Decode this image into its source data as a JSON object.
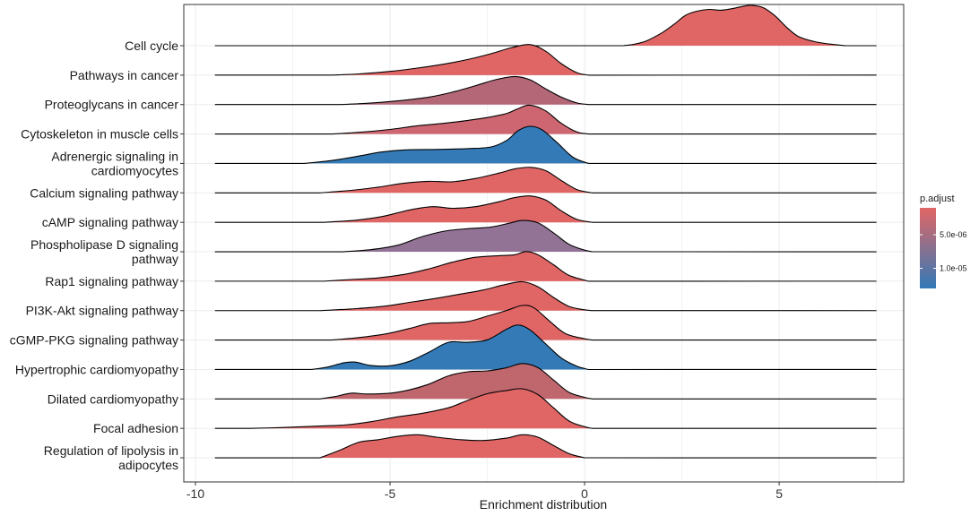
{
  "chart_data": {
    "type": "ridgeline",
    "xlabel": "Enrichment distribution",
    "xlim": [
      -10.3,
      8.2
    ],
    "x_ticks": [
      -10,
      -5,
      0,
      5
    ],
    "x_tick_labels": [
      "-10",
      "-5",
      "0",
      "5"
    ],
    "grid": true,
    "legend": {
      "title": "p.adjust",
      "position": "right",
      "tick_labels": [
        "5.0e-06",
        "1.0e-05"
      ],
      "tick_values": [
        5e-06,
        1e-05
      ],
      "range": [
        1e-06,
        1.3e-05
      ],
      "colors": [
        "#e06665",
        "#337ab7"
      ]
    },
    "series": [
      {
        "name": "Cell cycle",
        "label_lines": [
          "Cell cycle"
        ],
        "color": "#e06665",
        "range": [
          -9.5,
          7.5
        ],
        "density": [
          [
            1.0,
            0
          ],
          [
            1.3,
            0.04
          ],
          [
            1.6,
            0.12
          ],
          [
            2.0,
            0.32
          ],
          [
            2.3,
            0.52
          ],
          [
            2.6,
            0.74
          ],
          [
            2.9,
            0.84
          ],
          [
            3.2,
            0.88
          ],
          [
            3.5,
            0.86
          ],
          [
            3.8,
            0.9
          ],
          [
            4.1,
            0.96
          ],
          [
            4.3,
            0.98
          ],
          [
            4.6,
            0.92
          ],
          [
            4.9,
            0.72
          ],
          [
            5.2,
            0.44
          ],
          [
            5.5,
            0.22
          ],
          [
            5.9,
            0.1
          ],
          [
            6.3,
            0.04
          ],
          [
            6.7,
            0
          ]
        ]
      },
      {
        "name": "Pathways in cancer",
        "label_lines": [
          "Pathways in cancer"
        ],
        "color": "#e06665",
        "range": [
          -9.5,
          7.5
        ],
        "density": [
          [
            -6.5,
            0
          ],
          [
            -5.8,
            0.03
          ],
          [
            -5.0,
            0.09
          ],
          [
            -4.3,
            0.17
          ],
          [
            -3.6,
            0.27
          ],
          [
            -3.0,
            0.38
          ],
          [
            -2.4,
            0.52
          ],
          [
            -1.9,
            0.66
          ],
          [
            -1.4,
            0.74
          ],
          [
            -1.0,
            0.58
          ],
          [
            -0.6,
            0.28
          ],
          [
            -0.2,
            0.06
          ],
          [
            0.1,
            0
          ]
        ]
      },
      {
        "name": "Proteoglycans in cancer",
        "label_lines": [
          "Proteoglycans in cancer"
        ],
        "color": "#b46777",
        "range": [
          -9.5,
          7.5
        ],
        "density": [
          [
            -6.3,
            0
          ],
          [
            -5.6,
            0.03
          ],
          [
            -4.8,
            0.09
          ],
          [
            -4.0,
            0.18
          ],
          [
            -3.4,
            0.3
          ],
          [
            -2.8,
            0.46
          ],
          [
            -2.3,
            0.6
          ],
          [
            -1.8,
            0.68
          ],
          [
            -1.4,
            0.6
          ],
          [
            -1.0,
            0.38
          ],
          [
            -0.6,
            0.18
          ],
          [
            -0.2,
            0.04
          ],
          [
            0.1,
            0
          ]
        ]
      },
      {
        "name": "Cytoskeleton in muscle cells",
        "label_lines": [
          "Cytoskeleton in muscle cells"
        ],
        "color": "#cd6670",
        "range": [
          -9.5,
          7.5
        ],
        "density": [
          [
            -6.5,
            0
          ],
          [
            -5.8,
            0.04
          ],
          [
            -5.0,
            0.11
          ],
          [
            -4.3,
            0.2
          ],
          [
            -3.6,
            0.26
          ],
          [
            -3.0,
            0.33
          ],
          [
            -2.5,
            0.4
          ],
          [
            -2.0,
            0.5
          ],
          [
            -1.7,
            0.62
          ],
          [
            -1.4,
            0.7
          ],
          [
            -1.0,
            0.56
          ],
          [
            -0.6,
            0.26
          ],
          [
            -0.2,
            0.05
          ],
          [
            0.1,
            0
          ]
        ]
      },
      {
        "name": "Adrenergic signaling in cardiomyocytes",
        "label_lines": [
          "Adrenergic signaling in",
          "cardiomyocytes"
        ],
        "color": "#337ab7",
        "range": [
          -9.5,
          7.5
        ],
        "density": [
          [
            -7.2,
            0
          ],
          [
            -6.5,
            0.07
          ],
          [
            -5.8,
            0.18
          ],
          [
            -5.2,
            0.28
          ],
          [
            -4.6,
            0.33
          ],
          [
            -3.8,
            0.34
          ],
          [
            -3.0,
            0.36
          ],
          [
            -2.4,
            0.4
          ],
          [
            -2.0,
            0.56
          ],
          [
            -1.7,
            0.8
          ],
          [
            -1.4,
            0.9
          ],
          [
            -1.1,
            0.82
          ],
          [
            -0.7,
            0.5
          ],
          [
            -0.3,
            0.15
          ],
          [
            0.1,
            0
          ]
        ]
      },
      {
        "name": "Calcium signaling pathway",
        "label_lines": [
          "Calcium signaling pathway"
        ],
        "color": "#e06665",
        "range": [
          -9.5,
          7.5
        ],
        "density": [
          [
            -6.8,
            0
          ],
          [
            -6.0,
            0.06
          ],
          [
            -5.3,
            0.14
          ],
          [
            -4.6,
            0.24
          ],
          [
            -4.0,
            0.28
          ],
          [
            -3.4,
            0.27
          ],
          [
            -2.8,
            0.35
          ],
          [
            -2.2,
            0.48
          ],
          [
            -1.8,
            0.58
          ],
          [
            -1.4,
            0.62
          ],
          [
            -1.0,
            0.54
          ],
          [
            -0.6,
            0.3
          ],
          [
            -0.2,
            0.08
          ],
          [
            0.2,
            0
          ]
        ]
      },
      {
        "name": "cAMP signaling pathway",
        "label_lines": [
          "cAMP signaling pathway"
        ],
        "color": "#e06665",
        "range": [
          -9.5,
          7.5
        ],
        "density": [
          [
            -6.7,
            0
          ],
          [
            -5.9,
            0.05
          ],
          [
            -5.2,
            0.14
          ],
          [
            -4.5,
            0.3
          ],
          [
            -3.9,
            0.38
          ],
          [
            -3.4,
            0.34
          ],
          [
            -2.8,
            0.38
          ],
          [
            -2.2,
            0.5
          ],
          [
            -1.8,
            0.6
          ],
          [
            -1.4,
            0.64
          ],
          [
            -1.0,
            0.54
          ],
          [
            -0.6,
            0.28
          ],
          [
            -0.2,
            0.07
          ],
          [
            0.2,
            0
          ]
        ]
      },
      {
        "name": "Phospholipase D signaling pathway",
        "label_lines": [
          "Phospholipase D signaling",
          "pathway"
        ],
        "color": "#927395",
        "range": [
          -9.5,
          7.5
        ],
        "density": [
          [
            -6.2,
            0
          ],
          [
            -5.5,
            0.05
          ],
          [
            -4.8,
            0.16
          ],
          [
            -4.2,
            0.36
          ],
          [
            -3.6,
            0.5
          ],
          [
            -3.0,
            0.56
          ],
          [
            -2.4,
            0.6
          ],
          [
            -1.9,
            0.7
          ],
          [
            -1.6,
            0.76
          ],
          [
            -1.2,
            0.7
          ],
          [
            -0.8,
            0.46
          ],
          [
            -0.4,
            0.18
          ],
          [
            0,
            0.04
          ],
          [
            0.2,
            0
          ]
        ]
      },
      {
        "name": "Rap1 signaling pathway",
        "label_lines": [
          "Rap1 signaling pathway"
        ],
        "color": "#e06665",
        "range": [
          -9.5,
          7.5
        ],
        "density": [
          [
            -6.7,
            0
          ],
          [
            -6.0,
            0.04
          ],
          [
            -5.3,
            0.08
          ],
          [
            -4.6,
            0.17
          ],
          [
            -4.0,
            0.3
          ],
          [
            -3.4,
            0.46
          ],
          [
            -2.8,
            0.58
          ],
          [
            -2.2,
            0.62
          ],
          [
            -1.8,
            0.64
          ],
          [
            -1.5,
            0.72
          ],
          [
            -1.2,
            0.64
          ],
          [
            -0.8,
            0.4
          ],
          [
            -0.4,
            0.14
          ],
          [
            0.1,
            0
          ]
        ]
      },
      {
        "name": "PI3K-Akt signaling pathway",
        "label_lines": [
          "PI3K-Akt signaling pathway"
        ],
        "color": "#e06665",
        "range": [
          -9.5,
          7.5
        ],
        "density": [
          [
            -6.8,
            0
          ],
          [
            -6.0,
            0.04
          ],
          [
            -5.2,
            0.1
          ],
          [
            -4.5,
            0.2
          ],
          [
            -3.8,
            0.3
          ],
          [
            -3.2,
            0.4
          ],
          [
            -2.6,
            0.5
          ],
          [
            -2.1,
            0.62
          ],
          [
            -1.6,
            0.7
          ],
          [
            -1.2,
            0.58
          ],
          [
            -0.8,
            0.32
          ],
          [
            -0.4,
            0.1
          ],
          [
            0,
            0.02
          ],
          [
            0.2,
            0
          ]
        ]
      },
      {
        "name": "cGMP-PKG signaling pathway",
        "label_lines": [
          "cGMP-PKG signaling pathway"
        ],
        "color": "#e06665",
        "range": [
          -9.5,
          7.5
        ],
        "density": [
          [
            -6.5,
            0
          ],
          [
            -5.8,
            0.06
          ],
          [
            -5.1,
            0.15
          ],
          [
            -4.5,
            0.28
          ],
          [
            -4.0,
            0.4
          ],
          [
            -3.5,
            0.42
          ],
          [
            -3.0,
            0.45
          ],
          [
            -2.5,
            0.58
          ],
          [
            -2.0,
            0.72
          ],
          [
            -1.6,
            0.84
          ],
          [
            -1.3,
            0.78
          ],
          [
            -0.9,
            0.46
          ],
          [
            -0.5,
            0.16
          ],
          [
            0,
            0.03
          ],
          [
            0.2,
            0
          ]
        ]
      },
      {
        "name": "Hypertrophic cardiomyopathy",
        "label_lines": [
          "Hypertrophic cardiomyopathy"
        ],
        "color": "#337ab7",
        "range": [
          -9.5,
          7.5
        ],
        "density": [
          [
            -7.0,
            0
          ],
          [
            -6.6,
            0.06
          ],
          [
            -6.2,
            0.16
          ],
          [
            -5.9,
            0.18
          ],
          [
            -5.5,
            0.1
          ],
          [
            -5.0,
            0.09
          ],
          [
            -4.5,
            0.2
          ],
          [
            -4.0,
            0.42
          ],
          [
            -3.5,
            0.66
          ],
          [
            -3.0,
            0.66
          ],
          [
            -2.5,
            0.72
          ],
          [
            -2.0,
            0.98
          ],
          [
            -1.7,
            1.08
          ],
          [
            -1.4,
            0.96
          ],
          [
            -1.0,
            0.62
          ],
          [
            -0.6,
            0.28
          ],
          [
            -0.2,
            0.08
          ],
          [
            0.1,
            0
          ]
        ]
      },
      {
        "name": "Dilated cardiomyopathy",
        "label_lines": [
          "Dilated cardiomyopathy"
        ],
        "color": "#c0676e",
        "range": [
          -9.5,
          7.5
        ],
        "density": [
          [
            -6.8,
            0
          ],
          [
            -6.4,
            0.06
          ],
          [
            -6.0,
            0.14
          ],
          [
            -5.6,
            0.12
          ],
          [
            -5.0,
            0.14
          ],
          [
            -4.5,
            0.22
          ],
          [
            -4.0,
            0.36
          ],
          [
            -3.5,
            0.56
          ],
          [
            -3.0,
            0.66
          ],
          [
            -2.5,
            0.68
          ],
          [
            -2.0,
            0.76
          ],
          [
            -1.6,
            0.86
          ],
          [
            -1.2,
            0.76
          ],
          [
            -0.8,
            0.46
          ],
          [
            -0.4,
            0.16
          ],
          [
            0,
            0.04
          ],
          [
            0.2,
            0
          ]
        ]
      },
      {
        "name": "Focal adhesion",
        "label_lines": [
          "Focal adhesion"
        ],
        "color": "#e06665",
        "range": [
          -9.5,
          7.5
        ],
        "density": [
          [
            -8.6,
            0
          ],
          [
            -7.8,
            0.02
          ],
          [
            -7.0,
            0.05
          ],
          [
            -6.2,
            0.08
          ],
          [
            -5.5,
            0.16
          ],
          [
            -4.8,
            0.28
          ],
          [
            -4.2,
            0.36
          ],
          [
            -3.5,
            0.5
          ],
          [
            -3.0,
            0.68
          ],
          [
            -2.5,
            0.84
          ],
          [
            -2.0,
            0.92
          ],
          [
            -1.6,
            0.96
          ],
          [
            -1.2,
            0.82
          ],
          [
            -0.8,
            0.5
          ],
          [
            -0.4,
            0.18
          ],
          [
            0,
            0.04
          ],
          [
            0.2,
            0
          ]
        ]
      },
      {
        "name": "Regulation of lipolysis in adipocytes",
        "label_lines": [
          "Regulation of lipolysis in",
          "adipocytes"
        ],
        "color": "#e06665",
        "range": [
          -9.5,
          7.5
        ],
        "density": [
          [
            -6.8,
            0
          ],
          [
            -6.3,
            0.18
          ],
          [
            -5.8,
            0.38
          ],
          [
            -5.3,
            0.44
          ],
          [
            -4.8,
            0.52
          ],
          [
            -4.3,
            0.56
          ],
          [
            -3.8,
            0.5
          ],
          [
            -3.2,
            0.44
          ],
          [
            -2.6,
            0.42
          ],
          [
            -2.0,
            0.48
          ],
          [
            -1.6,
            0.56
          ],
          [
            -1.2,
            0.5
          ],
          [
            -0.8,
            0.3
          ],
          [
            -0.4,
            0.1
          ],
          [
            0,
            0
          ]
        ]
      }
    ]
  }
}
